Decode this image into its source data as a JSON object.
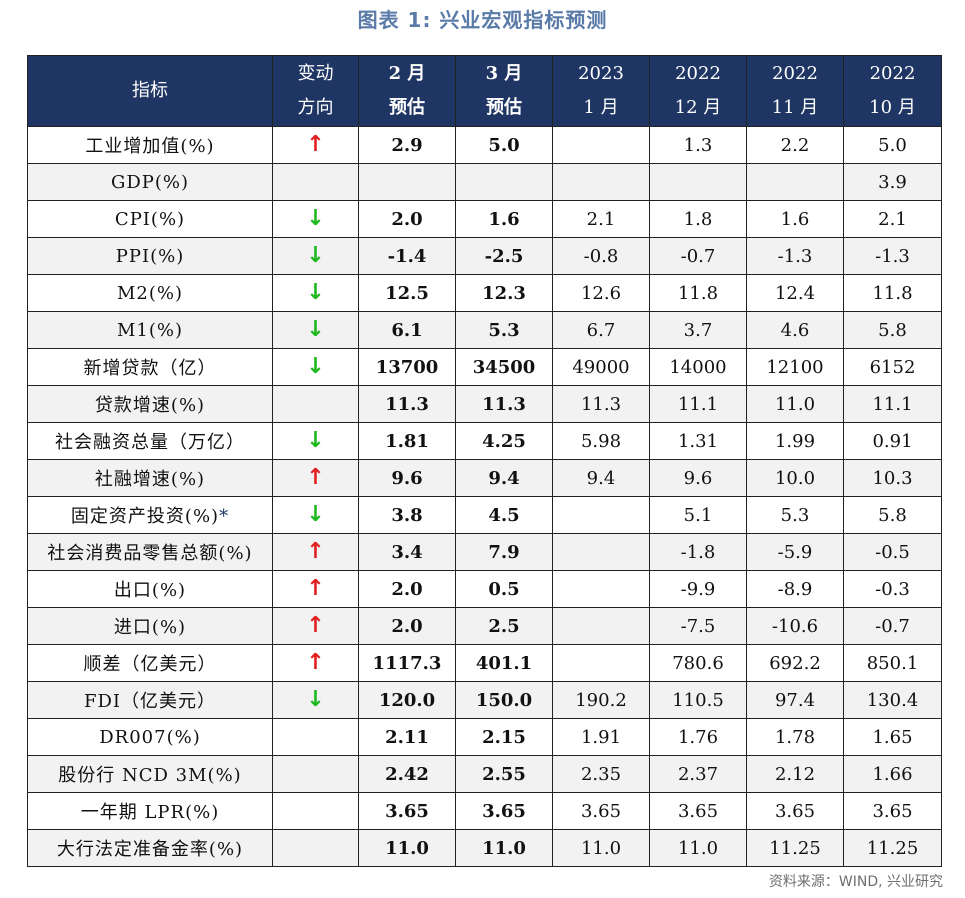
{
  "title": "图表 1:  兴业宏观指标预测",
  "colors": {
    "header_bg": "#1f3563",
    "header_text": "#ffffff",
    "title": "#5a7aa8",
    "arrow_up": "#e02020",
    "arrow_down": "#1fb81f",
    "shaded_row": "#f2f2f2"
  },
  "arrows": {
    "up": "↑",
    "down": "↓"
  },
  "header": {
    "indicator": "指标",
    "direction": [
      "变动",
      "方向"
    ],
    "feb": [
      "2 月",
      "预估"
    ],
    "mar": [
      "3 月",
      "预估"
    ],
    "jan2023": [
      "2023",
      "1 月"
    ],
    "dec2022": [
      "2022",
      "12 月"
    ],
    "nov2022": [
      "2022",
      "11 月"
    ],
    "oct2022": [
      "2022",
      "10 月"
    ]
  },
  "rows": [
    {
      "name": "工业增加值(%)",
      "dir": "up",
      "feb": "2.9",
      "mar": "5.0",
      "jan2023": "",
      "dec2022": "1.3",
      "nov2022": "2.2",
      "oct2022": "5.0"
    },
    {
      "name": "GDP(%)",
      "dir": "",
      "feb": "",
      "mar": "",
      "jan2023": "",
      "dec2022": "",
      "nov2022": "",
      "oct2022": "3.9"
    },
    {
      "name": "CPI(%)",
      "dir": "down",
      "feb": "2.0",
      "mar": "1.6",
      "jan2023": "2.1",
      "dec2022": "1.8",
      "nov2022": "1.6",
      "oct2022": "2.1"
    },
    {
      "name": "PPI(%)",
      "dir": "down",
      "feb": "-1.4",
      "mar": "-2.5",
      "jan2023": "-0.8",
      "dec2022": "-0.7",
      "nov2022": "-1.3",
      "oct2022": "-1.3"
    },
    {
      "name": "M2(%)",
      "dir": "down",
      "feb": "12.5",
      "mar": "12.3",
      "jan2023": "12.6",
      "dec2022": "11.8",
      "nov2022": "12.4",
      "oct2022": "11.8"
    },
    {
      "name": "M1(%)",
      "dir": "down",
      "feb": "6.1",
      "mar": "5.3",
      "jan2023": "6.7",
      "dec2022": "3.7",
      "nov2022": "4.6",
      "oct2022": "5.8"
    },
    {
      "name": "新增贷款（亿）",
      "dir": "down",
      "feb": "13700",
      "mar": "34500",
      "jan2023": "49000",
      "dec2022": "14000",
      "nov2022": "12100",
      "oct2022": "6152"
    },
    {
      "name": "贷款增速(%)",
      "dir": "",
      "feb": "11.3",
      "mar": "11.3",
      "jan2023": "11.3",
      "dec2022": "11.1",
      "nov2022": "11.0",
      "oct2022": "11.1"
    },
    {
      "name": "社会融资总量（万亿）",
      "dir": "down",
      "feb": "1.81",
      "mar": "4.25",
      "jan2023": "5.98",
      "dec2022": "1.31",
      "nov2022": "1.99",
      "oct2022": "0.91"
    },
    {
      "name": "社融增速(%)",
      "dir": "up",
      "feb": "9.6",
      "mar": "9.4",
      "jan2023": "9.4",
      "dec2022": "9.6",
      "nov2022": "10.0",
      "oct2022": "10.3"
    },
    {
      "name": "固定资产投资(%)",
      "name_suffix": "*",
      "dir": "down",
      "feb": "3.8",
      "mar": "4.5",
      "jan2023": "",
      "dec2022": "5.1",
      "nov2022": "5.3",
      "oct2022": "5.8"
    },
    {
      "name": "社会消费品零售总额(%)",
      "dir": "up",
      "feb": "3.4",
      "mar": "7.9",
      "jan2023": "",
      "dec2022": "-1.8",
      "nov2022": "-5.9",
      "oct2022": "-0.5"
    },
    {
      "name": "出口(%)",
      "dir": "up",
      "feb": "2.0",
      "mar": "0.5",
      "jan2023": "",
      "dec2022": "-9.9",
      "nov2022": "-8.9",
      "oct2022": "-0.3"
    },
    {
      "name": "进口(%)",
      "dir": "up",
      "feb": "2.0",
      "mar": "2.5",
      "jan2023": "",
      "dec2022": "-7.5",
      "nov2022": "-10.6",
      "oct2022": "-0.7"
    },
    {
      "name": "顺差（亿美元）",
      "dir": "up",
      "feb": "1117.3",
      "mar": "401.1",
      "jan2023": "",
      "dec2022": "780.6",
      "nov2022": "692.2",
      "oct2022": "850.1"
    },
    {
      "name": "FDI（亿美元）",
      "dir": "down",
      "feb": "120.0",
      "mar": "150.0",
      "jan2023": "190.2",
      "dec2022": "110.5",
      "nov2022": "97.4",
      "oct2022": "130.4"
    },
    {
      "name": "DR007(%)",
      "dir": "",
      "feb": "2.11",
      "mar": "2.15",
      "jan2023": "1.91",
      "dec2022": "1.76",
      "nov2022": "1.78",
      "oct2022": "1.65"
    },
    {
      "name": "股份行 NCD 3M(%)",
      "dir": "",
      "feb": "2.42",
      "mar": "2.55",
      "jan2023": "2.35",
      "dec2022": "2.37",
      "nov2022": "2.12",
      "oct2022": "1.66"
    },
    {
      "name": "一年期 LPR(%)",
      "dir": "",
      "feb": "3.65",
      "mar": "3.65",
      "jan2023": "3.65",
      "dec2022": "3.65",
      "nov2022": "3.65",
      "oct2022": "3.65"
    },
    {
      "name": "大行法定准备金率(%)",
      "dir": "",
      "feb": "11.0",
      "mar": "11.0",
      "jan2023": "11.0",
      "dec2022": "11.0",
      "nov2022": "11.25",
      "oct2022": "11.25"
    }
  ],
  "source": "资料来源：WIND, 兴业研究"
}
